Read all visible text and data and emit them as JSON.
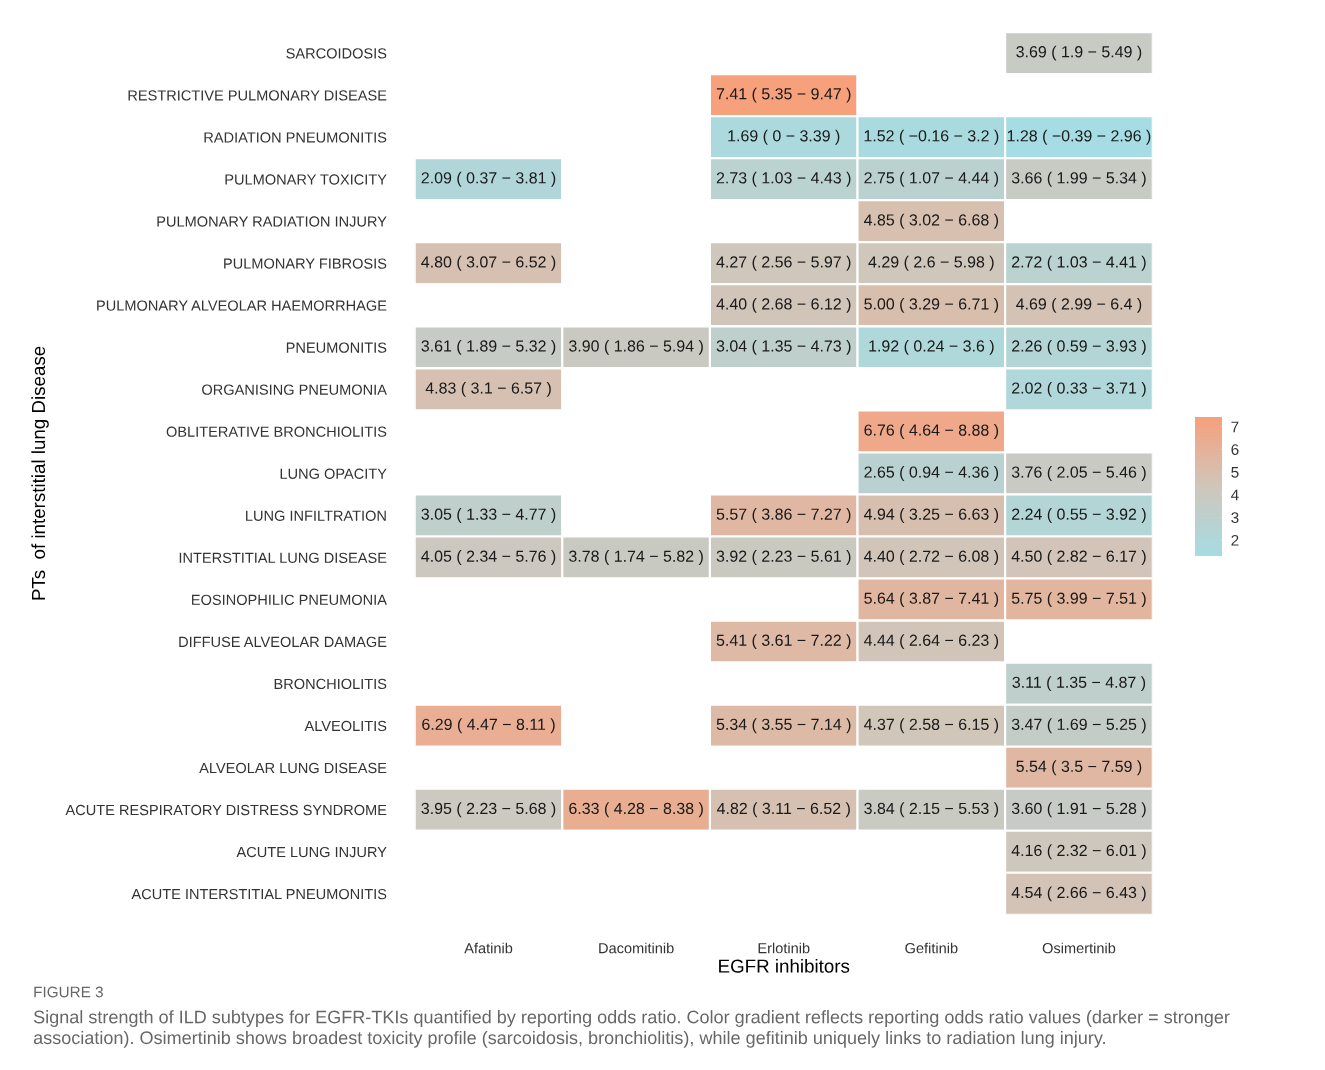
{
  "chart_data": {
    "type": "heatmap",
    "xlabel": "EGFR inhibitors",
    "ylabel": "PTs  of interstitial lung Disease",
    "categories": [
      "Afatinib",
      "Dacomitinib",
      "Erlotinib",
      "Gefitinib",
      "Osimertinib"
    ],
    "y_categories": [
      "SARCOIDOSIS",
      "RESTRICTIVE PULMONARY DISEASE",
      "RADIATION PNEUMONITIS",
      "PULMONARY TOXICITY",
      "PULMONARY RADIATION INJURY",
      "PULMONARY FIBROSIS",
      "PULMONARY ALVEOLAR HAEMORRHAGE",
      "PNEUMONITIS",
      "ORGANISING PNEUMONIA",
      "OBLITERATIVE BRONCHIOLITIS",
      "LUNG OPACITY",
      "LUNG INFILTRATION",
      "INTERSTITIAL LUNG DISEASE",
      "EOSINOPHILIC PNEUMONIA",
      "DIFFUSE ALVEOLAR DAMAGE",
      "BRONCHIOLITIS",
      "ALVEOLITIS",
      "ALVEOLAR LUNG DISEASE",
      "ACUTE RESPIRATORY DISTRESS SYNDROME",
      "ACUTE LUNG INJURY",
      "ACUTE INTERSTITIAL PNEUMONITIS"
    ],
    "cells": [
      [
        null,
        null,
        null,
        null,
        3.69
      ],
      [
        null,
        null,
        7.41,
        null,
        null
      ],
      [
        null,
        null,
        1.69,
        1.52,
        1.28
      ],
      [
        2.09,
        null,
        2.73,
        2.75,
        3.66
      ],
      [
        null,
        null,
        null,
        4.85,
        null
      ],
      [
        4.8,
        null,
        4.27,
        4.29,
        2.72
      ],
      [
        null,
        null,
        4.4,
        5.0,
        4.69
      ],
      [
        3.61,
        3.9,
        3.04,
        1.92,
        2.26
      ],
      [
        4.83,
        null,
        null,
        null,
        2.02
      ],
      [
        null,
        null,
        null,
        6.76,
        null
      ],
      [
        null,
        null,
        null,
        2.65,
        3.76
      ],
      [
        3.05,
        null,
        5.57,
        4.94,
        2.24
      ],
      [
        4.05,
        3.78,
        3.92,
        4.4,
        4.5
      ],
      [
        null,
        null,
        null,
        5.64,
        5.75
      ],
      [
        null,
        null,
        5.41,
        4.44,
        null
      ],
      [
        null,
        null,
        null,
        null,
        3.11
      ],
      [
        6.29,
        null,
        5.34,
        4.37,
        3.47
      ],
      [
        null,
        null,
        null,
        null,
        5.54
      ],
      [
        3.95,
        6.33,
        4.82,
        3.84,
        3.6
      ],
      [
        null,
        null,
        null,
        null,
        4.16
      ],
      [
        null,
        null,
        null,
        null,
        4.54
      ]
    ],
    "cell_labels": [
      [
        null,
        null,
        null,
        null,
        "3.69 ( 1.9 − 5.49 )"
      ],
      [
        null,
        null,
        "7.41 ( 5.35 − 9.47 )",
        null,
        null
      ],
      [
        null,
        null,
        "1.69 ( 0 − 3.39 )",
        "1.52 ( −0.16 − 3.2 )",
        "1.28 ( −0.39 − 2.96 )"
      ],
      [
        "2.09 ( 0.37 − 3.81 )",
        null,
        "2.73 ( 1.03 − 4.43 )",
        "2.75 ( 1.07 − 4.44 )",
        "3.66 ( 1.99 − 5.34 )"
      ],
      [
        null,
        null,
        null,
        "4.85 ( 3.02 − 6.68 )",
        null
      ],
      [
        "4.80 ( 3.07 − 6.52 )",
        null,
        "4.27 ( 2.56 − 5.97 )",
        "4.29 ( 2.6 − 5.98 )",
        "2.72 ( 1.03 − 4.41 )"
      ],
      [
        null,
        null,
        "4.40 ( 2.68 − 6.12 )",
        "5.00 ( 3.29 − 6.71 )",
        "4.69 ( 2.99 − 6.4 )"
      ],
      [
        "3.61 ( 1.89 − 5.32 )",
        "3.90 ( 1.86 − 5.94 )",
        "3.04 ( 1.35 − 4.73 )",
        "1.92 ( 0.24 − 3.6 )",
        "2.26 ( 0.59 − 3.93 )"
      ],
      [
        "4.83 ( 3.1 − 6.57 )",
        null,
        null,
        null,
        "2.02 ( 0.33 − 3.71 )"
      ],
      [
        null,
        null,
        null,
        "6.76 ( 4.64 − 8.88 )",
        null
      ],
      [
        null,
        null,
        null,
        "2.65 ( 0.94 − 4.36 )",
        "3.76 ( 2.05 − 5.46 )"
      ],
      [
        "3.05 ( 1.33 − 4.77 )",
        null,
        "5.57 ( 3.86 − 7.27 )",
        "4.94 ( 3.25 − 6.63 )",
        "2.24 ( 0.55 − 3.92 )"
      ],
      [
        "4.05 ( 2.34 − 5.76 )",
        "3.78 ( 1.74 − 5.82 )",
        "3.92 ( 2.23 − 5.61 )",
        "4.40 ( 2.72 − 6.08 )",
        "4.50 ( 2.82 − 6.17 )"
      ],
      [
        null,
        null,
        null,
        "5.64 ( 3.87 − 7.41 )",
        "5.75 ( 3.99 − 7.51 )"
      ],
      [
        null,
        null,
        "5.41 ( 3.61 − 7.22 )",
        "4.44 ( 2.64 − 6.23 )",
        null
      ],
      [
        null,
        null,
        null,
        null,
        "3.11 ( 1.35 − 4.87 )"
      ],
      [
        "6.29 ( 4.47 − 8.11 )",
        null,
        "5.34 ( 3.55 − 7.14 )",
        "4.37 ( 2.58 − 6.15 )",
        "3.47 ( 1.69 − 5.25 )"
      ],
      [
        null,
        null,
        null,
        null,
        "5.54 ( 3.5 − 7.59 )"
      ],
      [
        "3.95 ( 2.23 − 5.68 )",
        "6.33 ( 4.28 − 8.38 )",
        "4.82 ( 3.11 − 6.52 )",
        "3.84 ( 2.15 − 5.53 )",
        "3.60 ( 1.91 − 5.28 )"
      ],
      [
        null,
        null,
        null,
        null,
        "4.16 ( 2.32 − 6.01 )"
      ],
      [
        null,
        null,
        null,
        null,
        "4.54 ( 2.66 − 6.43 )"
      ]
    ],
    "colors": [
      "#a6dce3",
      "#d0c6bb",
      "#f7a07c"
    ],
    "clim": [
      1.28,
      7.41
    ],
    "cticks": [
      2,
      3,
      4,
      5,
      6,
      7
    ],
    "grid": false,
    "legend": false,
    "annotations": [
      "FIGURE 3",
      "Signal strength of ILD subtypes for EGFR-TKIs quantified by reporting odds ratio. Color gradient reflects reporting odds ratio values (darker = stronger association). Osimertinib shows broadest toxicity profile (sarcoidosis, bronchiolitis), while gefitinib uniquely links to radiation lung injury."
    ]
  }
}
